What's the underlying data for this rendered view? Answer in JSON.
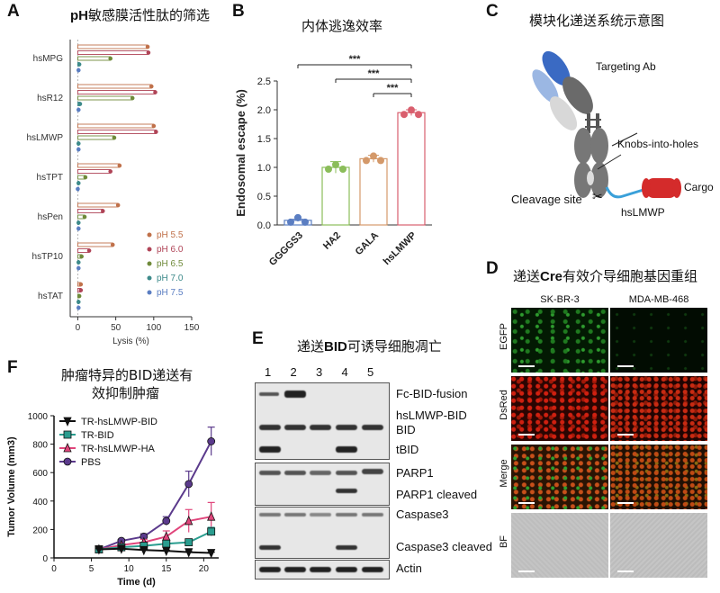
{
  "panels": {
    "A": {
      "letter": "A",
      "title_b": "pH",
      "title_rest": "敏感膜活性肽的筛选"
    },
    "B": {
      "letter": "B",
      "title": "内体逃逸效率"
    },
    "C": {
      "letter": "C",
      "title": "模块化递送系统示意图",
      "labels": {
        "targeting": "Targeting Ab",
        "knobs": "Knobs-into-holes",
        "cleavage": "Cleavage site",
        "linker": "hsLMWP",
        "cargo": "Cargo",
        "scissors": "✂"
      }
    },
    "D": {
      "letter": "D",
      "title_pre": "递送",
      "title_b": "Cre",
      "title_post": "有效介导细胞基因重组",
      "columns": [
        "SK-BR-3",
        "MDA-MB-468"
      ],
      "rows": [
        "EGFP",
        "DsRed",
        "Merge",
        "BF"
      ]
    },
    "E": {
      "letter": "E",
      "title_pre": "递送",
      "title_b": "BID",
      "title_post": "可诱导细胞凋亡",
      "lanes": [
        "1",
        "2",
        "3",
        "4",
        "5"
      ],
      "band_labels": [
        "Fc-BID-fusion",
        "hsLMWP-BID",
        "BID",
        "tBID",
        "PARP1",
        "PARP1 cleaved",
        "Caspase3",
        "Caspase3 cleaved",
        "Actin"
      ]
    },
    "F": {
      "letter": "F",
      "title_line1": "肿瘤特异的BID递送有",
      "title_line2": "效抑制肿瘤"
    }
  },
  "chart_data": [
    {
      "panel": "A",
      "type": "bar",
      "orientation": "horizontal",
      "title": "pH敏感膜活性肽的筛选",
      "xlabel": "Lysis (%)",
      "ylabel": "",
      "xlim": [
        -10,
        150
      ],
      "xticks": [
        "0",
        "50",
        "100",
        "150"
      ],
      "categories": [
        "hsMPG",
        "hsR12",
        "hsLMWP",
        "hsTPT",
        "hsPen",
        "hsTP10",
        "hsTAT"
      ],
      "legend_position": "right",
      "series": [
        {
          "name": "pH 5.5",
          "color": "#c0714a",
          "values": [
            92,
            97,
            100,
            55,
            53,
            46,
            4
          ]
        },
        {
          "name": "pH 6.0",
          "color": "#b04457",
          "values": [
            93,
            102,
            103,
            43,
            33,
            15,
            4
          ]
        },
        {
          "name": "pH 6.5",
          "color": "#6f8a3a",
          "values": [
            43,
            72,
            48,
            10,
            9,
            5,
            2
          ]
        },
        {
          "name": "pH 7.0",
          "color": "#3d8a8a",
          "values": [
            2,
            3,
            1,
            1,
            1,
            1,
            1
          ]
        },
        {
          "name": "pH 7.5",
          "color": "#5b7ec2",
          "values": [
            1,
            1,
            1,
            0,
            1,
            1,
            1
          ]
        }
      ]
    },
    {
      "panel": "B",
      "type": "bar",
      "title": "内体逃逸效率",
      "xlabel": "",
      "ylabel": "Endosomal escape (%)",
      "ylim": [
        0,
        2.5
      ],
      "yticks": [
        "0.0",
        "0.5",
        "1.0",
        "1.5",
        "2.0",
        "2.5"
      ],
      "categories": [
        "GGGGS3",
        "HA2",
        "GALA",
        "hsLMWP"
      ],
      "colors": [
        "#5b7ec2",
        "#8bbd5a",
        "#d4996a",
        "#d95f6e"
      ],
      "values": [
        0.08,
        1.0,
        1.15,
        1.95
      ],
      "errors": [
        0.02,
        0.1,
        0.06,
        0.05
      ],
      "significance": [
        {
          "from": "GGGGS3",
          "to": "hsLMWP",
          "label": "***"
        },
        {
          "from": "HA2",
          "to": "hsLMWP",
          "label": "***"
        },
        {
          "from": "GALA",
          "to": "hsLMWP",
          "label": "***"
        }
      ]
    },
    {
      "panel": "F",
      "type": "line",
      "title": "肿瘤特异的BID递送有效抑制肿瘤",
      "xlabel": "Time (d)",
      "ylabel": "Tumor Volume (mm3)",
      "xlim": [
        0,
        22
      ],
      "ylim": [
        0,
        1000
      ],
      "xticks": [
        "0",
        "5",
        "10",
        "15",
        "20"
      ],
      "yticks": [
        "0",
        "200",
        "400",
        "600",
        "800",
        "1000"
      ],
      "x": [
        6,
        9,
        12,
        15,
        18,
        21
      ],
      "legend_position": "top-left",
      "series": [
        {
          "name": "TR-hsLMWP-BID",
          "color": "#111111",
          "marker": "triangle-down",
          "values": [
            60,
            65,
            55,
            50,
            40,
            35
          ],
          "errors": [
            5,
            5,
            5,
            5,
            5,
            5
          ]
        },
        {
          "name": "TR-BID",
          "color": "#2a9d8f",
          "marker": "square",
          "values": [
            60,
            75,
            85,
            100,
            110,
            185
          ],
          "errors": [
            5,
            10,
            15,
            15,
            20,
            30
          ]
        },
        {
          "name": "TR-hsLMWP-HA",
          "color": "#e0457b",
          "marker": "triangle-up",
          "values": [
            60,
            90,
            110,
            150,
            260,
            290
          ],
          "errors": [
            5,
            10,
            20,
            40,
            80,
            100
          ]
        },
        {
          "name": "PBS",
          "color": "#5b3a8c",
          "marker": "circle",
          "values": [
            60,
            120,
            150,
            260,
            520,
            820
          ],
          "errors": [
            5,
            10,
            20,
            30,
            90,
            100
          ]
        }
      ]
    }
  ]
}
